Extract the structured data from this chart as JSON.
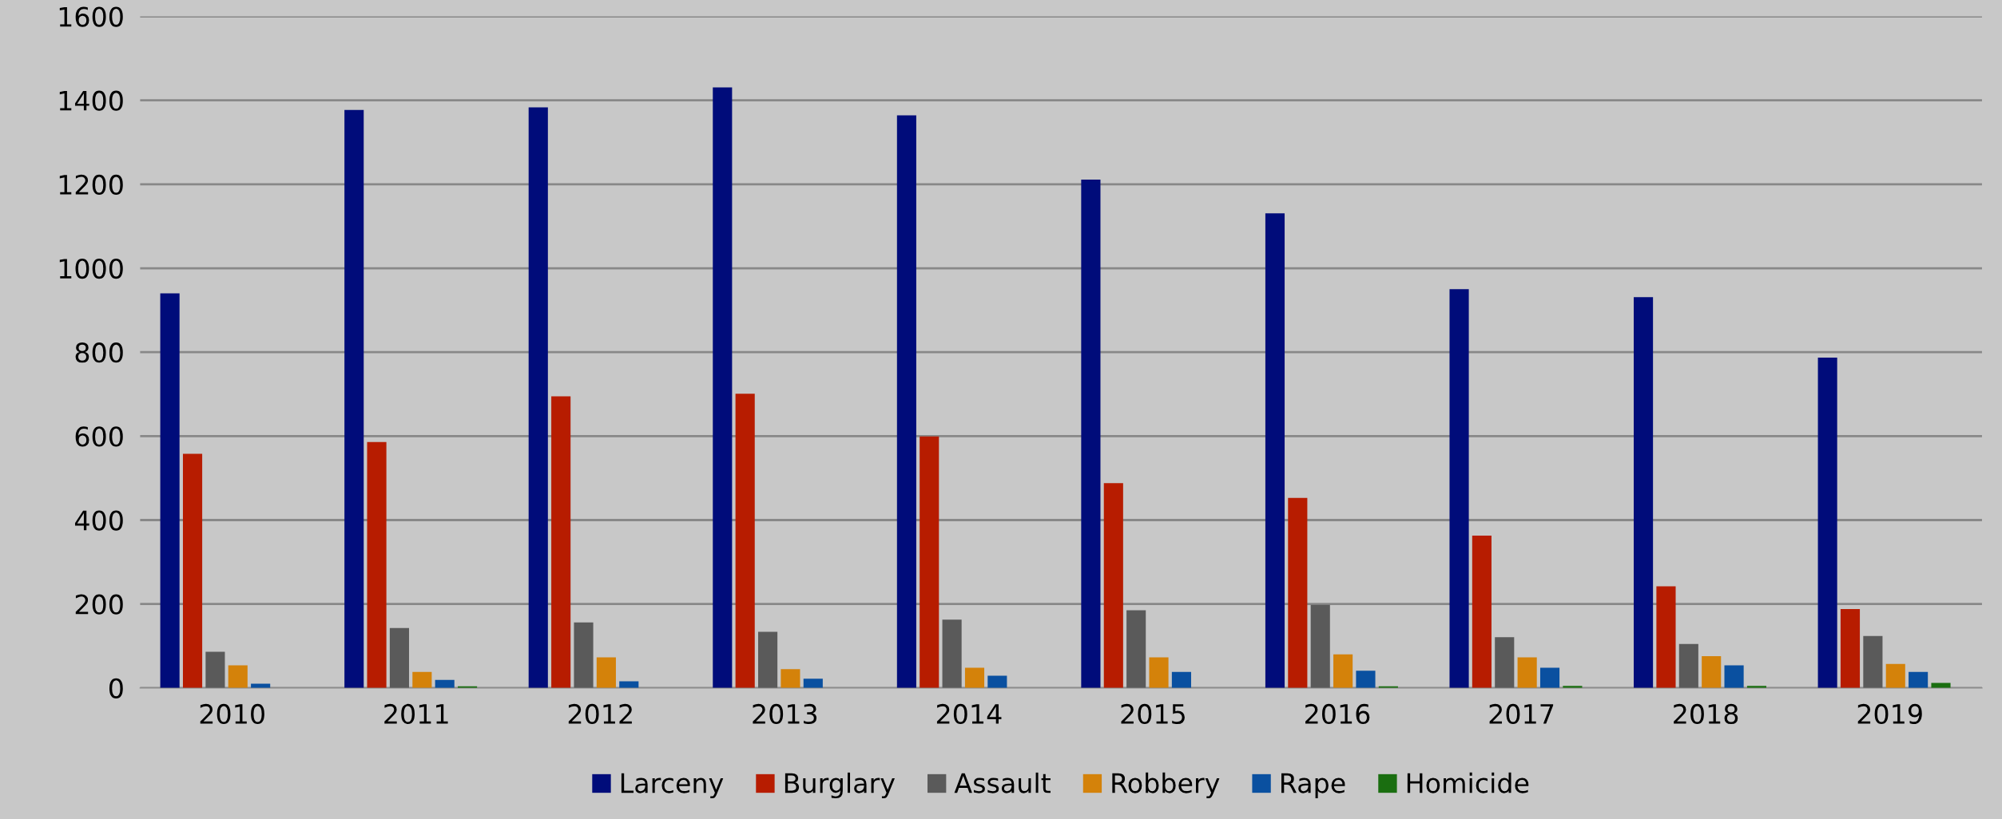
{
  "chart_data": {
    "type": "bar",
    "categories": [
      "2010",
      "2011",
      "2012",
      "2013",
      "2014",
      "2015",
      "2016",
      "2017",
      "2018",
      "2019"
    ],
    "series": [
      {
        "name": "Larceny",
        "color": "#000c7a",
        "values": [
          940,
          1377,
          1383,
          1431,
          1364,
          1211,
          1131,
          950,
          931,
          787
        ]
      },
      {
        "name": "Burglary",
        "color": "#b71c00",
        "values": [
          558,
          586,
          695,
          701,
          599,
          488,
          453,
          363,
          242,
          188
        ]
      },
      {
        "name": "Assault",
        "color": "#5a5a5a",
        "values": [
          86,
          143,
          156,
          134,
          163,
          185,
          198,
          121,
          105,
          124
        ]
      },
      {
        "name": "Robbery",
        "color": "#d4820a",
        "values": [
          54,
          38,
          73,
          45,
          48,
          73,
          80,
          73,
          76,
          57
        ]
      },
      {
        "name": "Rape",
        "color": "#0a50a0",
        "values": [
          10,
          19,
          16,
          22,
          29,
          38,
          41,
          48,
          54,
          38
        ]
      },
      {
        "name": "Homicide",
        "color": "#1a6e10",
        "values": [
          0,
          4,
          0,
          0,
          0,
          0,
          4,
          5,
          5,
          12
        ]
      }
    ],
    "ylim": [
      0,
      1600
    ],
    "yticks": [
      0,
      200,
      400,
      600,
      800,
      1000,
      1200,
      1400,
      1600
    ],
    "grid": "y",
    "legend": "bottom"
  }
}
